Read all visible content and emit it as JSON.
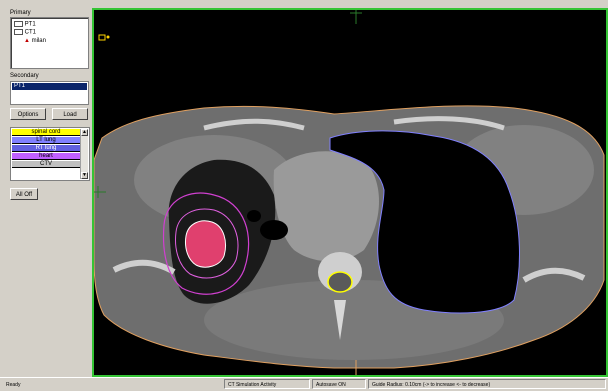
{
  "sidebar": {
    "primary_label": "Primary",
    "tree": [
      "PT1",
      "CT1",
      "milan"
    ],
    "secondary_label": "Secondary",
    "secondary_selected": "PT1",
    "options_button": "Options",
    "load_button": "Load",
    "structures": [
      {
        "name": "spinal cord",
        "color": "#ffff00"
      },
      {
        "name": "LT lung",
        "color": "#8080ff"
      },
      {
        "name": "RT lung",
        "color": "#6060e0"
      },
      {
        "name": "heart",
        "color": "#c060ff"
      },
      {
        "name": "CTV",
        "color": "#c0c0c0"
      }
    ],
    "all_off_button": "All Off"
  },
  "status": {
    "ready": "Ready",
    "activity": "CT Simulation Activity",
    "autosave": "Autosave ON",
    "guide": "Guide Radius: 0.10cm (-> to increase <- to decrease)"
  },
  "colors": {
    "viewport_border": "#35c435",
    "body_contour": "#e0a060",
    "lung_contour": "#8080ff",
    "spinal_contour": "#ffff00",
    "tumor_fill": "#e0406e",
    "ptv_contour": "#d040d0"
  }
}
